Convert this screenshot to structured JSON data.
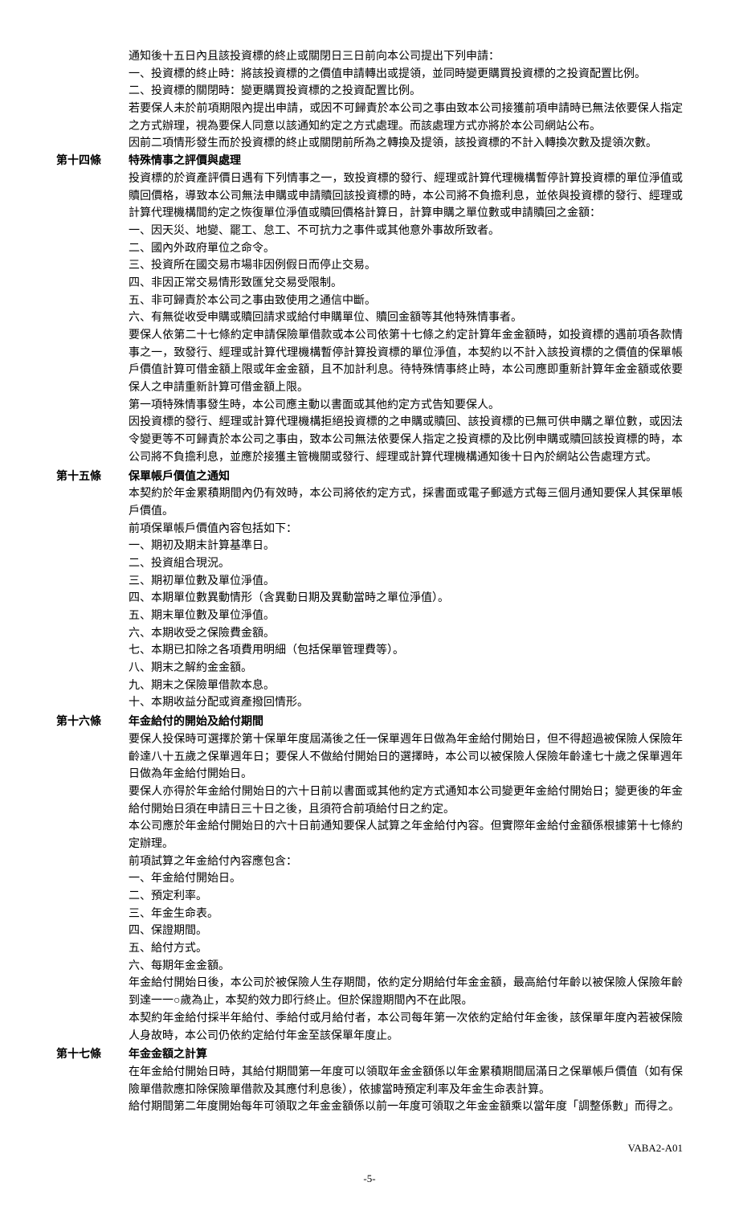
{
  "continuation_block": {
    "p1": "通知後十五日內且該投資標的終止或關閉日三日前向本公司提出下列申請：",
    "p2": "一、投資標的終止時：將該投資標的之價值申請轉出或提領，並同時變更購買投資標的之投資配置比例。",
    "p3": "二、投資標的關閉時：變更購買投資標的之投資配置比例。",
    "p4": "若要保人未於前項期限內提出申請，或因不可歸責於本公司之事由致本公司接獲前項申請時已無法依要保人指定之方式辦理，視為要保人同意以該通知約定之方式處理。而該處理方式亦將於本公司網站公布。",
    "p5": "因前二項情形發生而於投資標的終止或關閉前所為之轉換及提領，該投資標的不計入轉換次數及提領次數。"
  },
  "article14": {
    "label": "第十四條",
    "title": "特殊情事之評價與處理",
    "p1": "投資標的於資產評價日遇有下列情事之一，致投資標的發行、經理或計算代理機構暫停計算投資標的單位淨值或贖回價格，導致本公司無法申購或申請贖回該投資標的時，本公司將不負擔利息，並依與投資標的發行、經理或計算代理機構間約定之恢復單位淨值或贖回價格計算日，計算申購之單位數或申請贖回之金額：",
    "p2": "一、因天災、地變、罷工、怠工、不可抗力之事件或其他意外事故所致者。",
    "p3": "二、國內外政府單位之命令。",
    "p4": "三、投資所在國交易市場非因例假日而停止交易。",
    "p5": "四、非因正常交易情形致匯兌交易受限制。",
    "p6": "五、非可歸責於本公司之事由致使用之通信中斷。",
    "p7": "六、有無從收受申購或贖回請求或給付申購單位、贖回金額等其他特殊情事者。",
    "p8": "要保人依第二十七條約定申請保險單借款或本公司依第十七條之約定計算年金金額時，如投資標的遇前項各款情事之一，致發行、經理或計算代理機構暫停計算投資標的單位淨值，本契約以不計入該投資標的之價值的保單帳戶價值計算可借金額上限或年金金額，且不加計利息。待特殊情事終止時，本公司應即重新計算年金金額或依要保人之申請重新計算可借金額上限。",
    "p9": "第一項特殊情事發生時，本公司應主動以書面或其他約定方式告知要保人。",
    "p10": "因投資標的發行、經理或計算代理機構拒絕投資標的之申購或贖回、該投資標的已無可供申購之單位數，或因法令變更等不可歸責於本公司之事由，致本公司無法依要保人指定之投資標的及比例申購或贖回該投資標的時，本公司將不負擔利息，並應於接獲主管機關或發行、經理或計算代理機構通知後十日內於網站公告處理方式。"
  },
  "article15": {
    "label": "第十五條",
    "title": "保單帳戶價值之通知",
    "p1": "本契約於年金累積期間內仍有效時，本公司將依約定方式，採書面或電子郵遞方式每三個月通知要保人其保單帳戶價值。",
    "p2": "前項保單帳戶價值內容包括如下：",
    "p3": "一、期初及期末計算基準日。",
    "p4": "二、投資組合現況。",
    "p5": "三、期初單位數及單位淨值。",
    "p6": "四、本期單位數異動情形（含異動日期及異動當時之單位淨值）。",
    "p7": "五、期末單位數及單位淨值。",
    "p8": "六、本期收受之保險費金額。",
    "p9": "七、本期已扣除之各項費用明細（包括保單管理費等）。",
    "p10": "八、期末之解約金金額。",
    "p11": "九、期末之保險單借款本息。",
    "p12": "十、本期收益分配或資產撥回情形。"
  },
  "article16": {
    "label": "第十六條",
    "title": "年金給付的開始及給付期間",
    "p1": "要保人投保時可選擇於第十保單年度屆滿後之任一保單週年日做為年金給付開始日，但不得超過被保險人保險年齡達八十五歲之保單週年日；要保人不做給付開始日的選擇時，本公司以被保險人保險年齡達七十歲之保單週年日做為年金給付開始日。",
    "p2": "要保人亦得於年金給付開始日的六十日前以書面或其他約定方式通知本公司變更年金給付開始日；變更後的年金給付開始日須在申請日三十日之後，且須符合前項給付日之約定。",
    "p3": "本公司應於年金給付開始日的六十日前通知要保人試算之年金給付內容。但實際年金給付金額係根據第十七條約定辦理。",
    "p4": "前項試算之年金給付內容應包含：",
    "p5": "一、年金給付開始日。",
    "p6": "二、預定利率。",
    "p7": "三、年金生命表。",
    "p8": "四、保證期間。",
    "p9": "五、給付方式。",
    "p10": "六、每期年金金額。",
    "p11": "年金給付開始日後，本公司於被保險人生存期間，依約定分期給付年金金額，最高給付年齡以被保險人保險年齡到達一一○歲為止，本契約效力即行終止。但於保證期間內不在此限。",
    "p12": "本契約年金給付採半年給付、季給付或月給付者，本公司每年第一次依約定給付年金後，該保單年度內若被保險人身故時，本公司仍依約定給付年金至該保單年度止。"
  },
  "article17": {
    "label": "第十七條",
    "title": "年金金額之計算",
    "p1": "在年金給付開始日時，其給付期間第一年度可以領取年金金額係以年金累積期間屆滿日之保單帳戶價值（如有保險單借款應扣除保險單借款及其應付利息後），依據當時預定利率及年金生命表計算。",
    "p2": "給付期間第二年度開始每年可領取之年金金額係以前一年度可領取之年金金額乘以當年度「調整係數」而得之。"
  },
  "footer": {
    "doc_code": "VABA2-A01",
    "page_number": "-5-"
  }
}
